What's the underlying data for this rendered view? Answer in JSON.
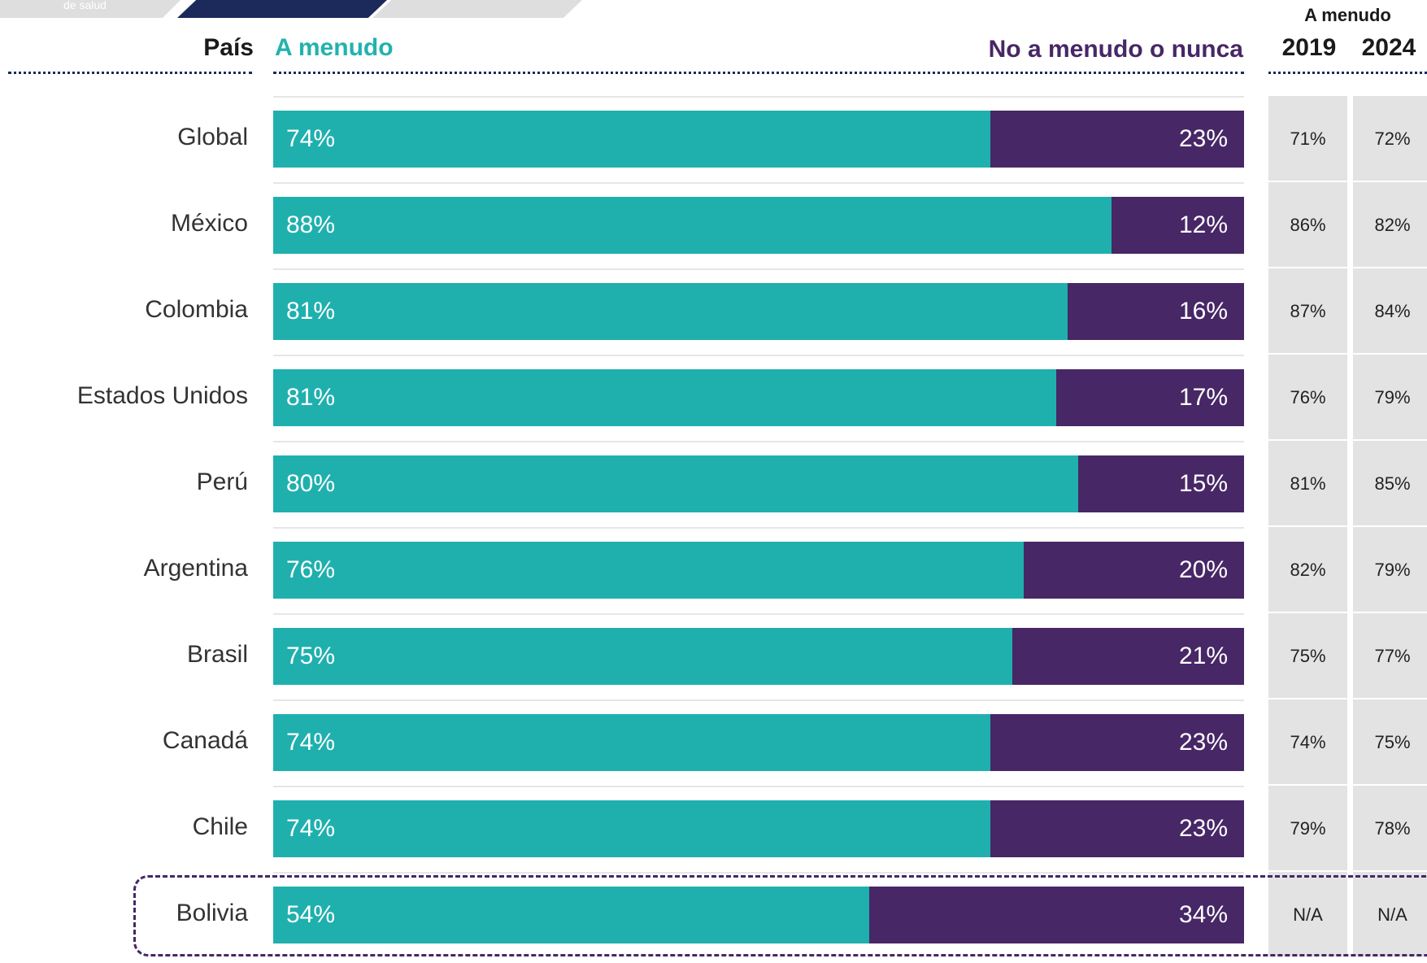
{
  "tabs": [
    {
      "label": "de salud",
      "color": "#dedede"
    },
    {
      "label": "",
      "color": "#1b2a5b"
    },
    {
      "label": "",
      "color": "#dedede"
    }
  ],
  "headers": {
    "country": "País",
    "often": "A menudo",
    "never": "No a menudo o nunca",
    "trend": "A menudo",
    "year_2019": "2019",
    "year_2024": "2024"
  },
  "colors": {
    "often": "#1fb0ae",
    "never": "#472766",
    "highlight": "#472766"
  },
  "chart_data": {
    "type": "bar",
    "orientation": "horizontal",
    "stacked": false,
    "xlim": [
      0,
      100
    ],
    "categories": [
      "Global",
      "México",
      "Colombia",
      "Estados Unidos",
      "Perú",
      "Argentina",
      "Brasil",
      "Canadá",
      "Chile",
      "Bolivia"
    ],
    "series": [
      {
        "name": "A menudo",
        "values": [
          74,
          88,
          81,
          81,
          80,
          76,
          75,
          74,
          74,
          54
        ]
      },
      {
        "name": "No a menudo o nunca",
        "values": [
          23,
          12,
          16,
          17,
          15,
          20,
          21,
          23,
          23,
          34
        ]
      }
    ],
    "labels_often": [
      "74%",
      "88%",
      "81%",
      "81%",
      "80%",
      "76%",
      "75%",
      "74%",
      "74%",
      "54%"
    ],
    "labels_never": [
      "23%",
      "12%",
      "16%",
      "17%",
      "15%",
      "20%",
      "21%",
      "23%",
      "23%",
      "34%"
    ],
    "table": {
      "title": "A menudo",
      "columns": [
        "2019",
        "2024"
      ],
      "values_2019": [
        "71%",
        "86%",
        "87%",
        "76%",
        "81%",
        "82%",
        "75%",
        "74%",
        "79%",
        "N/A"
      ],
      "values_2024": [
        "72%",
        "82%",
        "84%",
        "79%",
        "85%",
        "79%",
        "77%",
        "75%",
        "78%",
        "N/A"
      ]
    },
    "highlighted_category": "Bolivia"
  }
}
